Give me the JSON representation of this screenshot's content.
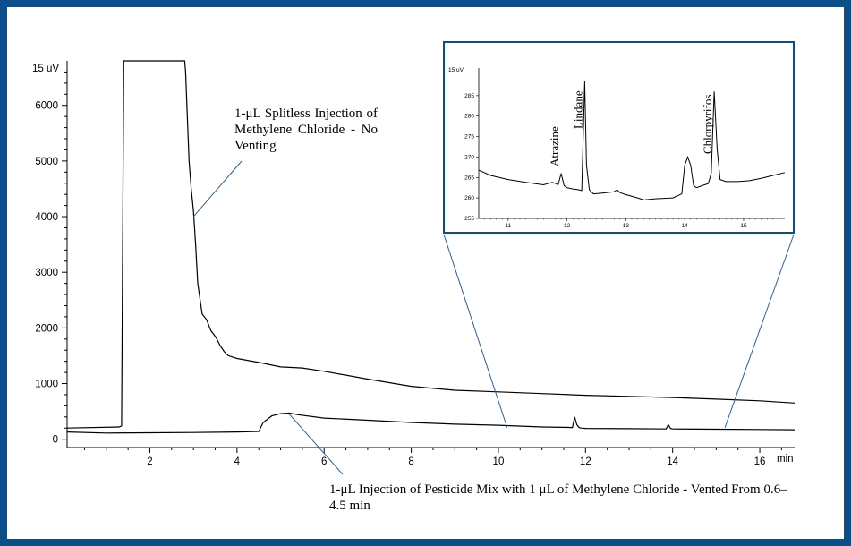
{
  "chart_data": [
    {
      "type": "line",
      "title": "",
      "xlabel": "",
      "ylabel": "",
      "x_unit_label": "min",
      "y_unit_label": "15 uV",
      "xlim": [
        0.1,
        16.8
      ],
      "ylim": [
        -150,
        6800
      ],
      "x_ticks": [
        2,
        4,
        6,
        8,
        10,
        12,
        14,
        16
      ],
      "y_ticks": [
        0,
        1000,
        2000,
        3000,
        4000,
        5000,
        6000
      ],
      "series": [
        {
          "name": "",
          "x": [
            0.1,
            1.3,
            1.35,
            1.4,
            1.42,
            1.45,
            2.8,
            2.82,
            2.9,
            2.95,
            3.0,
            3.05,
            3.1,
            3.2,
            3.3,
            3.4,
            3.5,
            3.55,
            3.6,
            3.7,
            3.8,
            4.0,
            4.5,
            5.0,
            5.5,
            6.0,
            7.0,
            8.0,
            9.0,
            10.0,
            11.0,
            12.0,
            13.0,
            14.0,
            15.0,
            16.0,
            16.8
          ],
          "values": [
            200,
            220,
            240,
            6800,
            6800,
            6800,
            6800,
            6600,
            5000,
            4500,
            4100,
            3500,
            2800,
            2250,
            2150,
            1950,
            1850,
            1780,
            1700,
            1580,
            1500,
            1450,
            1380,
            1300,
            1280,
            1220,
            1080,
            950,
            880,
            850,
            820,
            790,
            770,
            750,
            720,
            690,
            650
          ]
        },
        {
          "name": "",
          "x": [
            0.1,
            1.0,
            2.0,
            3.0,
            4.0,
            4.5,
            4.6,
            4.8,
            5.0,
            5.2,
            5.4,
            6.0,
            7.0,
            8.0,
            9.0,
            10.0,
            11.0,
            11.7,
            11.75,
            11.8,
            11.85,
            11.9,
            12.0,
            13.0,
            13.85,
            13.9,
            13.95,
            14.0,
            15.0,
            16.0,
            16.8
          ],
          "values": [
            130,
            110,
            115,
            120,
            130,
            140,
            300,
            420,
            460,
            470,
            440,
            380,
            340,
            300,
            270,
            250,
            220,
            210,
            400,
            260,
            210,
            200,
            195,
            190,
            185,
            260,
            195,
            185,
            180,
            175,
            170
          ]
        }
      ],
      "annotations": [
        {
          "text": "1-μL Splitless Injection of Methylene Chloride - No Venting",
          "x": 3.0,
          "y": 4000
        },
        {
          "text": "1-μL Injection of Pesticide Mix with 1 μL of Methylene Chloride - Vented From 0.6–4.5 min",
          "x": 5.2,
          "y": 450
        }
      ],
      "zoom_region": {
        "x": [
          10.2,
          15.2
        ]
      }
    },
    {
      "type": "line",
      "title": "",
      "y_unit_label": "15 uV",
      "xlim": [
        10.5,
        15.7
      ],
      "ylim": [
        255,
        290
      ],
      "x_ticks": [
        11,
        12,
        13,
        14,
        15
      ],
      "y_ticks": [
        255,
        260,
        265,
        270,
        275,
        280,
        285
      ],
      "series": [
        {
          "name": "",
          "x": [
            10.5,
            10.7,
            11.0,
            11.3,
            11.6,
            11.75,
            11.85,
            11.9,
            11.95,
            12.0,
            12.1,
            12.2,
            12.25,
            12.3,
            12.33,
            12.38,
            12.45,
            12.6,
            12.8,
            12.85,
            12.9,
            13.0,
            13.2,
            13.3,
            13.5,
            13.8,
            13.95,
            14.0,
            14.05,
            14.1,
            14.15,
            14.2,
            14.3,
            14.4,
            14.45,
            14.5,
            14.55,
            14.6,
            14.7,
            14.9,
            15.1,
            15.3,
            15.5,
            15.7
          ],
          "values": [
            266.8,
            265.5,
            264.5,
            263.8,
            263.2,
            263.8,
            263.3,
            266,
            263,
            262.5,
            262.2,
            262.0,
            261.8,
            288.5,
            268,
            262,
            261,
            261.2,
            261.5,
            262,
            261.3,
            260.8,
            260,
            259.5,
            259.8,
            260,
            261,
            268,
            270,
            268,
            263,
            262.5,
            263,
            263.5,
            266,
            286,
            272,
            264.5,
            264,
            264,
            264.2,
            264.8,
            265.5,
            266.2
          ]
        }
      ],
      "peak_labels": [
        {
          "text": "Atrazine",
          "x": 11.9
        },
        {
          "text": "Lindane",
          "x": 12.3
        },
        {
          "text": "Chlorpyrifos",
          "x": 14.5
        }
      ]
    }
  ]
}
